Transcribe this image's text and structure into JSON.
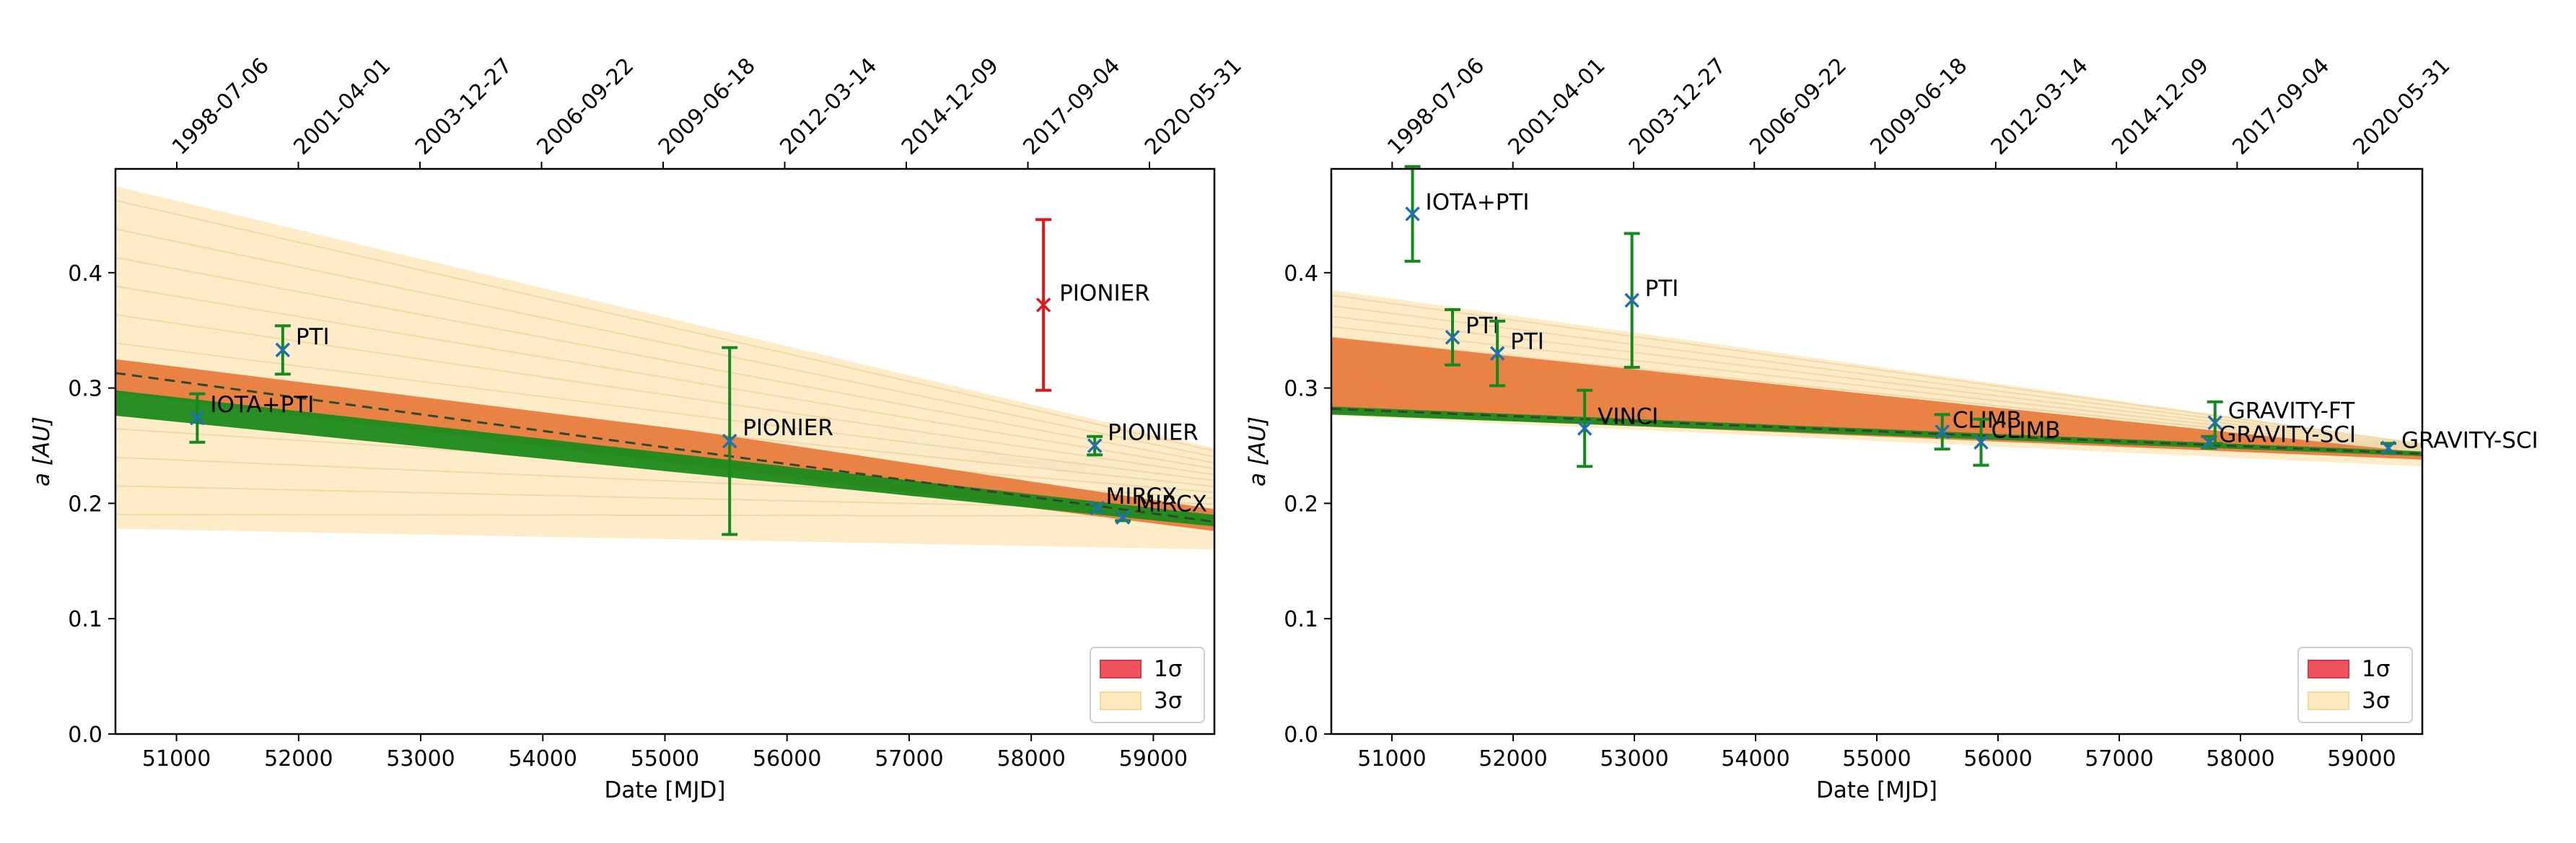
{
  "chart_data": [
    {
      "type": "scatter",
      "xlabel": "Date [MJD]",
      "ylabel": "a [AU]",
      "xlim": [
        50500,
        59500
      ],
      "ylim": [
        0.0,
        0.49
      ],
      "xticks": [
        "51000",
        "52000",
        "53000",
        "54000",
        "55000",
        "56000",
        "57000",
        "58000",
        "59000"
      ],
      "yticks": [
        "0.0",
        "0.1",
        "0.2",
        "0.3",
        "0.4"
      ],
      "top_ticks": [
        "1998-07-06",
        "2001-04-01",
        "2003-12-27",
        "2006-09-22",
        "2009-06-18",
        "2012-03-14",
        "2014-12-09",
        "2017-09-04",
        "2020-05-31"
      ],
      "legend": {
        "placement": "lower-right",
        "entries": [
          {
            "label": "1σ",
            "color": "#f0525f"
          },
          {
            "label": "3σ",
            "color": "#fde9bd"
          }
        ]
      },
      "model": {
        "fit": [
          [
            50500,
            0.313
          ],
          [
            59500,
            0.184
          ]
        ],
        "band_1sigma": {
          "upper": [
            [
              50500,
              0.325
            ],
            [
              55300,
              0.262
            ],
            [
              59500,
              0.195
            ]
          ],
          "lower": [
            [
              50500,
              0.296
            ],
            [
              59500,
              0.176
            ]
          ]
        },
        "band_3sigma": {
          "upper": [
            [
              50500,
              0.475
            ],
            [
              59500,
              0.248
            ]
          ],
          "lower": [
            [
              50500,
              0.178
            ],
            [
              59500,
              0.16
            ]
          ]
        },
        "green_band": {
          "upper": [
            [
              50500,
              0.298
            ],
            [
              59500,
              0.19
            ]
          ],
          "lower": [
            [
              50500,
              0.276
            ],
            [
              59500,
              0.18
            ]
          ]
        }
      },
      "points": [
        {
          "instrument": "IOTA+PTI",
          "x": 51170,
          "y": 0.274,
          "err": 0.021,
          "color": "#138a1e"
        },
        {
          "instrument": "PTI",
          "x": 51870,
          "y": 0.333,
          "err": 0.021,
          "color": "#138a1e"
        },
        {
          "instrument": "PIONIER",
          "x": 55530,
          "y": 0.254,
          "err": 0.081,
          "color": "#138a1e"
        },
        {
          "instrument": "PIONIER",
          "x": 58100,
          "y": 0.372,
          "err": 0.074,
          "color": "#e8141c"
        },
        {
          "instrument": "PIONIER",
          "x": 58520,
          "y": 0.25,
          "err": 0.008,
          "color": "#138a1e"
        },
        {
          "instrument": "MIRCX",
          "x": 58540,
          "y": 0.196,
          "err": 0.003,
          "color": "#138a1e"
        },
        {
          "instrument": "MIRCX",
          "x": 58750,
          "y": 0.188,
          "err": 0.003,
          "color": "#138a1e"
        }
      ]
    },
    {
      "type": "scatter",
      "xlabel": "Date [MJD]",
      "ylabel": "a [AU]",
      "xlim": [
        50500,
        59500
      ],
      "ylim": [
        0.0,
        0.49
      ],
      "xticks": [
        "51000",
        "52000",
        "53000",
        "54000",
        "55000",
        "56000",
        "57000",
        "58000",
        "59000"
      ],
      "yticks": [
        "0.0",
        "0.1",
        "0.2",
        "0.3",
        "0.4"
      ],
      "top_ticks": [
        "1998-07-06",
        "2001-04-01",
        "2003-12-27",
        "2006-09-22",
        "2009-06-18",
        "2012-03-14",
        "2014-12-09",
        "2017-09-04",
        "2020-05-31"
      ],
      "legend": {
        "placement": "lower-right",
        "entries": [
          {
            "label": "1σ",
            "color": "#f0525f"
          },
          {
            "label": "3σ",
            "color": "#fde9bd"
          }
        ]
      },
      "model": {
        "fit": [
          [
            50500,
            0.282
          ],
          [
            59500,
            0.243
          ]
        ],
        "band_1sigma": {
          "upper": [
            [
              50500,
              0.344
            ],
            [
              59500,
              0.244
            ]
          ],
          "lower": [
            [
              50500,
              0.278
            ],
            [
              59500,
              0.238
            ]
          ]
        },
        "band_3sigma": {
          "upper": [
            [
              50500,
              0.385
            ],
            [
              59500,
              0.252
            ]
          ],
          "lower": [
            [
              50500,
              0.276
            ],
            [
              59500,
              0.232
            ]
          ]
        },
        "green_band": {
          "upper": [
            [
              50500,
              0.284
            ],
            [
              59500,
              0.245
            ]
          ],
          "lower": [
            [
              50500,
              0.277
            ],
            [
              59500,
              0.241
            ]
          ]
        }
      },
      "points": [
        {
          "instrument": "IOTA+PTI",
          "x": 51170,
          "y": 0.451,
          "err": 0.041,
          "color": "#138a1e"
        },
        {
          "instrument": "PTI",
          "x": 51500,
          "y": 0.344,
          "err": 0.024,
          "color": "#138a1e"
        },
        {
          "instrument": "PTI",
          "x": 51870,
          "y": 0.33,
          "err": 0.028,
          "color": "#138a1e"
        },
        {
          "instrument": "VINCI",
          "x": 52590,
          "y": 0.265,
          "err": 0.033,
          "color": "#138a1e"
        },
        {
          "instrument": "PTI",
          "x": 52980,
          "y": 0.376,
          "err": 0.058,
          "color": "#138a1e"
        },
        {
          "instrument": "CLIMB",
          "x": 55540,
          "y": 0.262,
          "err": 0.015,
          "color": "#138a1e"
        },
        {
          "instrument": "CLIMB",
          "x": 55860,
          "y": 0.253,
          "err": 0.02,
          "color": "#138a1e"
        },
        {
          "instrument": "GRAVITY-FT",
          "x": 57790,
          "y": 0.27,
          "err": 0.018,
          "color": "#138a1e"
        },
        {
          "instrument": "GRAVITY-SCI",
          "x": 57740,
          "y": 0.253,
          "err": 0.005,
          "color": "#138a1e"
        },
        {
          "instrument": "GRAVITY-SCI",
          "x": 59220,
          "y": 0.248,
          "err": 0.004,
          "color": "#138a1e"
        }
      ]
    }
  ]
}
